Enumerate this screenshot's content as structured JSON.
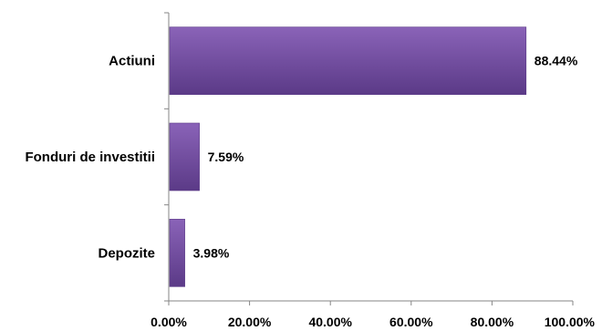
{
  "chart_data": {
    "type": "bar",
    "orientation": "horizontal",
    "categories": [
      "Actiuni",
      "Fonduri de investitii",
      "Depozite"
    ],
    "values": [
      88.44,
      7.59,
      3.98
    ],
    "value_labels": [
      "88.44%",
      "7.59%",
      "3.98%"
    ],
    "xlim": [
      0,
      100
    ],
    "x_ticks": [
      0,
      20,
      40,
      60,
      80,
      100
    ],
    "x_tick_labels": [
      "0.00%",
      "20.00%",
      "40.00%",
      "60.00%",
      "80.00%",
      "100.00%"
    ],
    "title": "",
    "xlabel": "",
    "ylabel": "",
    "grid": false,
    "legend": "none",
    "bar_color": "#7B52A8",
    "bar_color_light": "#8A63B8",
    "bar_color_dark": "#5B3A87"
  }
}
